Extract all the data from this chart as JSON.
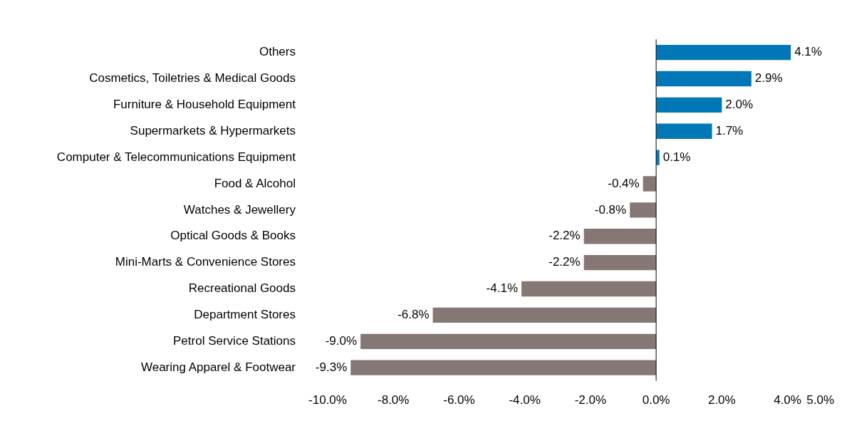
{
  "chart_data": {
    "type": "bar",
    "orientation": "horizontal",
    "categories": [
      "Others",
      "Cosmetics, Toiletries & Medical Goods",
      "Furniture & Household Equipment",
      "Supermarkets & Hypermarkets",
      "Computer & Telecommunications Equipment",
      "Food & Alcohol",
      "Watches & Jewellery",
      "Optical Goods & Books",
      "Mini-Marts & Convenience Stores",
      "Recreational Goods",
      "Department Stores",
      "Petrol Service Stations",
      "Wearing Apparel & Footwear"
    ],
    "values": [
      4.1,
      2.9,
      2.0,
      1.7,
      0.1,
      -0.4,
      -0.8,
      -2.2,
      -2.2,
      -4.1,
      -6.8,
      -9.0,
      -9.3
    ],
    "colors": [
      "#0077b6",
      "#0077b6",
      "#0077b6",
      "#0077b6",
      "#0077b6",
      "#857773",
      "#857773",
      "#857773",
      "#857773",
      "#857773",
      "#857773",
      "#857773",
      "#857773"
    ],
    "value_labels": [
      "4.1%",
      "2.9%",
      "2.0%",
      "1.7%",
      "0.1%",
      "-0.4%",
      "-0.8%",
      "-2.2%",
      "-2.2%",
      "-4.1%",
      "-6.8%",
      "-9.0%",
      "-9.3%"
    ],
    "xlim": [
      -10,
      5
    ],
    "xticks": [
      {
        "value": -10,
        "label": "-10.0%"
      },
      {
        "value": -8,
        "label": "-8.0%"
      },
      {
        "value": -6,
        "label": "-6.0%"
      },
      {
        "value": -4,
        "label": "-4.0%"
      },
      {
        "value": -2,
        "label": "-2.0%"
      },
      {
        "value": 0,
        "label": "0.0%"
      },
      {
        "value": 2,
        "label": "2.0%"
      },
      {
        "value": 4,
        "label": "4.0%"
      },
      {
        "value": 5,
        "label": "5.0%"
      }
    ],
    "ref_lines": [
      {
        "axis": "x",
        "value": 0,
        "color": "#000000"
      }
    ],
    "grid": false,
    "legend": false
  }
}
